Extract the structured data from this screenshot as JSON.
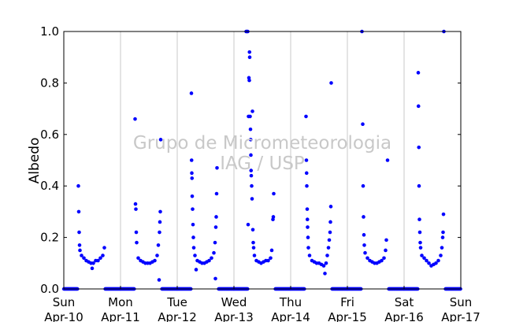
{
  "chart_data": {
    "type": "scatter",
    "title": "",
    "xlabel": "",
    "ylabel": "Albedo",
    "ylim": [
      0,
      1
    ],
    "yticks": [
      0.0,
      0.2,
      0.4,
      0.6,
      0.8,
      1.0
    ],
    "ytick_labels": [
      "0.0",
      "0.2",
      "0.4",
      "0.6",
      "0.8",
      "1.0"
    ],
    "xlim": [
      "2016-04-10T00:00",
      "2016-04-17T00:00"
    ],
    "xticks": [
      {
        "day": "Sun",
        "date": "Apr-10"
      },
      {
        "day": "Mon",
        "date": "Apr-11"
      },
      {
        "day": "Tue",
        "date": "Apr-12"
      },
      {
        "day": "Wed",
        "date": "Apr-13"
      },
      {
        "day": "Thu",
        "date": "Apr-14"
      },
      {
        "day": "Fri",
        "date": "Apr-15"
      },
      {
        "day": "Sat",
        "date": "Apr-16"
      },
      {
        "day": "Sun",
        "date": "Apr-17"
      }
    ],
    "grid": "vertical",
    "marker_color": "#0000ff",
    "series": [
      {
        "points": [
          [
            "2016-04-10T06:10",
            0.4
          ],
          [
            "2016-04-10T06:20",
            0.3
          ],
          [
            "2016-04-10T06:30",
            0.22
          ],
          [
            "2016-04-10T06:40",
            0.17
          ],
          [
            "2016-04-10T06:50",
            0.15
          ],
          [
            "2016-04-10T07:30",
            0.13
          ],
          [
            "2016-04-10T08:30",
            0.12
          ],
          [
            "2016-04-10T09:30",
            0.11
          ],
          [
            "2016-04-10T10:30",
            0.105
          ],
          [
            "2016-04-10T11:30",
            0.1
          ],
          [
            "2016-04-10T12:00",
            0.08
          ],
          [
            "2016-04-10T12:30",
            0.1
          ],
          [
            "2016-04-10T13:30",
            0.11
          ],
          [
            "2016-04-10T14:30",
            0.11
          ],
          [
            "2016-04-10T15:30",
            0.12
          ],
          [
            "2016-04-10T16:30",
            0.13
          ],
          [
            "2016-04-10T17:10",
            0.16
          ],
          [
            "2016-04-11T06:10",
            0.66
          ],
          [
            "2016-04-11T06:20",
            0.33
          ],
          [
            "2016-04-11T06:30",
            0.31
          ],
          [
            "2016-04-11T06:40",
            0.22
          ],
          [
            "2016-04-11T06:50",
            0.18
          ],
          [
            "2016-04-11T07:30",
            0.12
          ],
          [
            "2016-04-11T08:30",
            0.11
          ],
          [
            "2016-04-11T09:30",
            0.105
          ],
          [
            "2016-04-11T10:30",
            0.1
          ],
          [
            "2016-04-11T11:30",
            0.1
          ],
          [
            "2016-04-11T12:30",
            0.1
          ],
          [
            "2016-04-11T13:30",
            0.105
          ],
          [
            "2016-04-11T14:30",
            0.11
          ],
          [
            "2016-04-11T15:30",
            0.13
          ],
          [
            "2016-04-11T16:00",
            0.17
          ],
          [
            "2016-04-11T16:30",
            0.22
          ],
          [
            "2016-04-11T16:40",
            0.26
          ],
          [
            "2016-04-11T16:50",
            0.3
          ],
          [
            "2016-04-11T16:20",
            0.035
          ],
          [
            "2016-04-11T17:00",
            0.58
          ],
          [
            "2016-04-12T06:00",
            0.76
          ],
          [
            "2016-04-12T06:05",
            0.5
          ],
          [
            "2016-04-12T06:10",
            0.45
          ],
          [
            "2016-04-12T06:15",
            0.43
          ],
          [
            "2016-04-12T06:20",
            0.36
          ],
          [
            "2016-04-12T06:30",
            0.31
          ],
          [
            "2016-04-12T06:40",
            0.25
          ],
          [
            "2016-04-12T06:50",
            0.2
          ],
          [
            "2016-04-12T07:00",
            0.16
          ],
          [
            "2016-04-12T07:30",
            0.13
          ],
          [
            "2016-04-12T08:00",
            0.075
          ],
          [
            "2016-04-12T08:30",
            0.11
          ],
          [
            "2016-04-12T09:30",
            0.105
          ],
          [
            "2016-04-12T10:30",
            0.1
          ],
          [
            "2016-04-12T11:30",
            0.1
          ],
          [
            "2016-04-12T12:30",
            0.105
          ],
          [
            "2016-04-12T13:30",
            0.11
          ],
          [
            "2016-04-12T14:30",
            0.12
          ],
          [
            "2016-04-12T15:30",
            0.14
          ],
          [
            "2016-04-12T16:00",
            0.18
          ],
          [
            "2016-04-12T16:20",
            0.24
          ],
          [
            "2016-04-12T16:30",
            0.28
          ],
          [
            "2016-04-12T16:40",
            0.37
          ],
          [
            "2016-04-12T16:50",
            0.47
          ],
          [
            "2016-04-12T16:10",
            0.04
          ],
          [
            "2016-04-13T05:10",
            1.0
          ],
          [
            "2016-04-13T05:30",
            1.0
          ],
          [
            "2016-04-13T05:50",
            1.0
          ],
          [
            "2016-04-13T06:00",
            0.25
          ],
          [
            "2016-04-13T06:10",
            0.67
          ],
          [
            "2016-04-13T06:20",
            0.82
          ],
          [
            "2016-04-13T06:30",
            0.81
          ],
          [
            "2016-04-13T06:35",
            0.92
          ],
          [
            "2016-04-13T06:40",
            0.9
          ],
          [
            "2016-04-13T06:50",
            0.67
          ],
          [
            "2016-04-13T07:00",
            0.62
          ],
          [
            "2016-04-13T07:05",
            0.58
          ],
          [
            "2016-04-13T07:10",
            0.52
          ],
          [
            "2016-04-13T07:15",
            0.46
          ],
          [
            "2016-04-13T07:20",
            0.44
          ],
          [
            "2016-04-13T07:30",
            0.4
          ],
          [
            "2016-04-13T07:40",
            0.35
          ],
          [
            "2016-04-13T07:50",
            0.69
          ],
          [
            "2016-04-13T08:00",
            0.23
          ],
          [
            "2016-04-13T08:10",
            0.18
          ],
          [
            "2016-04-13T08:20",
            0.16
          ],
          [
            "2016-04-13T08:40",
            0.13
          ],
          [
            "2016-04-13T09:30",
            0.11
          ],
          [
            "2016-04-13T10:30",
            0.105
          ],
          [
            "2016-04-13T11:30",
            0.1
          ],
          [
            "2016-04-13T12:30",
            0.105
          ],
          [
            "2016-04-13T13:30",
            0.11
          ],
          [
            "2016-04-13T14:30",
            0.11
          ],
          [
            "2016-04-13T15:30",
            0.12
          ],
          [
            "2016-04-13T16:00",
            0.15
          ],
          [
            "2016-04-13T16:30",
            0.27
          ],
          [
            "2016-04-13T16:40",
            0.28
          ],
          [
            "2016-04-13T16:50",
            0.37
          ],
          [
            "2016-04-14T06:30",
            0.67
          ],
          [
            "2016-04-14T06:40",
            0.5
          ],
          [
            "2016-04-14T06:45",
            0.45
          ],
          [
            "2016-04-14T06:50",
            0.4
          ],
          [
            "2016-04-14T07:00",
            0.31
          ],
          [
            "2016-04-14T07:05",
            0.27
          ],
          [
            "2016-04-14T07:10",
            0.24
          ],
          [
            "2016-04-14T07:20",
            0.2
          ],
          [
            "2016-04-14T07:30",
            0.16
          ],
          [
            "2016-04-14T08:00",
            0.13
          ],
          [
            "2016-04-14T09:00",
            0.11
          ],
          [
            "2016-04-14T10:00",
            0.105
          ],
          [
            "2016-04-14T11:00",
            0.1
          ],
          [
            "2016-04-14T12:00",
            0.1
          ],
          [
            "2016-04-14T13:00",
            0.095
          ],
          [
            "2016-04-14T14:00",
            0.09
          ],
          [
            "2016-04-14T14:30",
            0.06
          ],
          [
            "2016-04-14T15:00",
            0.1
          ],
          [
            "2016-04-14T15:30",
            0.13
          ],
          [
            "2016-04-14T16:00",
            0.16
          ],
          [
            "2016-04-14T16:20",
            0.19
          ],
          [
            "2016-04-14T16:40",
            0.22
          ],
          [
            "2016-04-14T16:50",
            0.26
          ],
          [
            "2016-04-14T17:00",
            0.32
          ],
          [
            "2016-04-14T17:10",
            0.8
          ],
          [
            "2016-04-15T06:30",
            0.64
          ],
          [
            "2016-04-15T06:40",
            0.4
          ],
          [
            "2016-04-15T06:50",
            0.28
          ],
          [
            "2016-04-15T07:00",
            0.21
          ],
          [
            "2016-04-15T07:10",
            0.17
          ],
          [
            "2016-04-15T07:30",
            0.14
          ],
          [
            "2016-04-15T08:30",
            0.12
          ],
          [
            "2016-04-15T09:30",
            0.11
          ],
          [
            "2016-04-15T10:30",
            0.105
          ],
          [
            "2016-04-15T11:30",
            0.1
          ],
          [
            "2016-04-15T12:30",
            0.1
          ],
          [
            "2016-04-15T13:30",
            0.105
          ],
          [
            "2016-04-15T14:30",
            0.11
          ],
          [
            "2016-04-15T15:30",
            0.12
          ],
          [
            "2016-04-15T16:10",
            0.15
          ],
          [
            "2016-04-15T16:30",
            0.19
          ],
          [
            "2016-04-15T17:00",
            0.5
          ],
          [
            "2016-04-15T06:10",
            1.0
          ],
          [
            "2016-04-16T06:00",
            0.84
          ],
          [
            "2016-04-16T06:05",
            0.71
          ],
          [
            "2016-04-16T06:15",
            0.55
          ],
          [
            "2016-04-16T06:20",
            0.4
          ],
          [
            "2016-04-16T06:30",
            0.27
          ],
          [
            "2016-04-16T06:40",
            0.22
          ],
          [
            "2016-04-16T06:50",
            0.18
          ],
          [
            "2016-04-16T07:00",
            0.16
          ],
          [
            "2016-04-16T07:30",
            0.13
          ],
          [
            "2016-04-16T08:30",
            0.12
          ],
          [
            "2016-04-16T09:30",
            0.11
          ],
          [
            "2016-04-16T10:30",
            0.1
          ],
          [
            "2016-04-16T11:30",
            0.09
          ],
          [
            "2016-04-16T12:30",
            0.095
          ],
          [
            "2016-04-16T13:30",
            0.1
          ],
          [
            "2016-04-16T14:30",
            0.11
          ],
          [
            "2016-04-16T15:30",
            0.13
          ],
          [
            "2016-04-16T16:00",
            0.16
          ],
          [
            "2016-04-16T16:20",
            0.2
          ],
          [
            "2016-04-16T16:30",
            0.22
          ],
          [
            "2016-04-16T16:40",
            0.29
          ],
          [
            "2016-04-16T16:50",
            1.0
          ]
        ]
      }
    ]
  },
  "watermark": {
    "line1": "Grupo de Micrometeorologia",
    "line2": "IAG / USP"
  }
}
